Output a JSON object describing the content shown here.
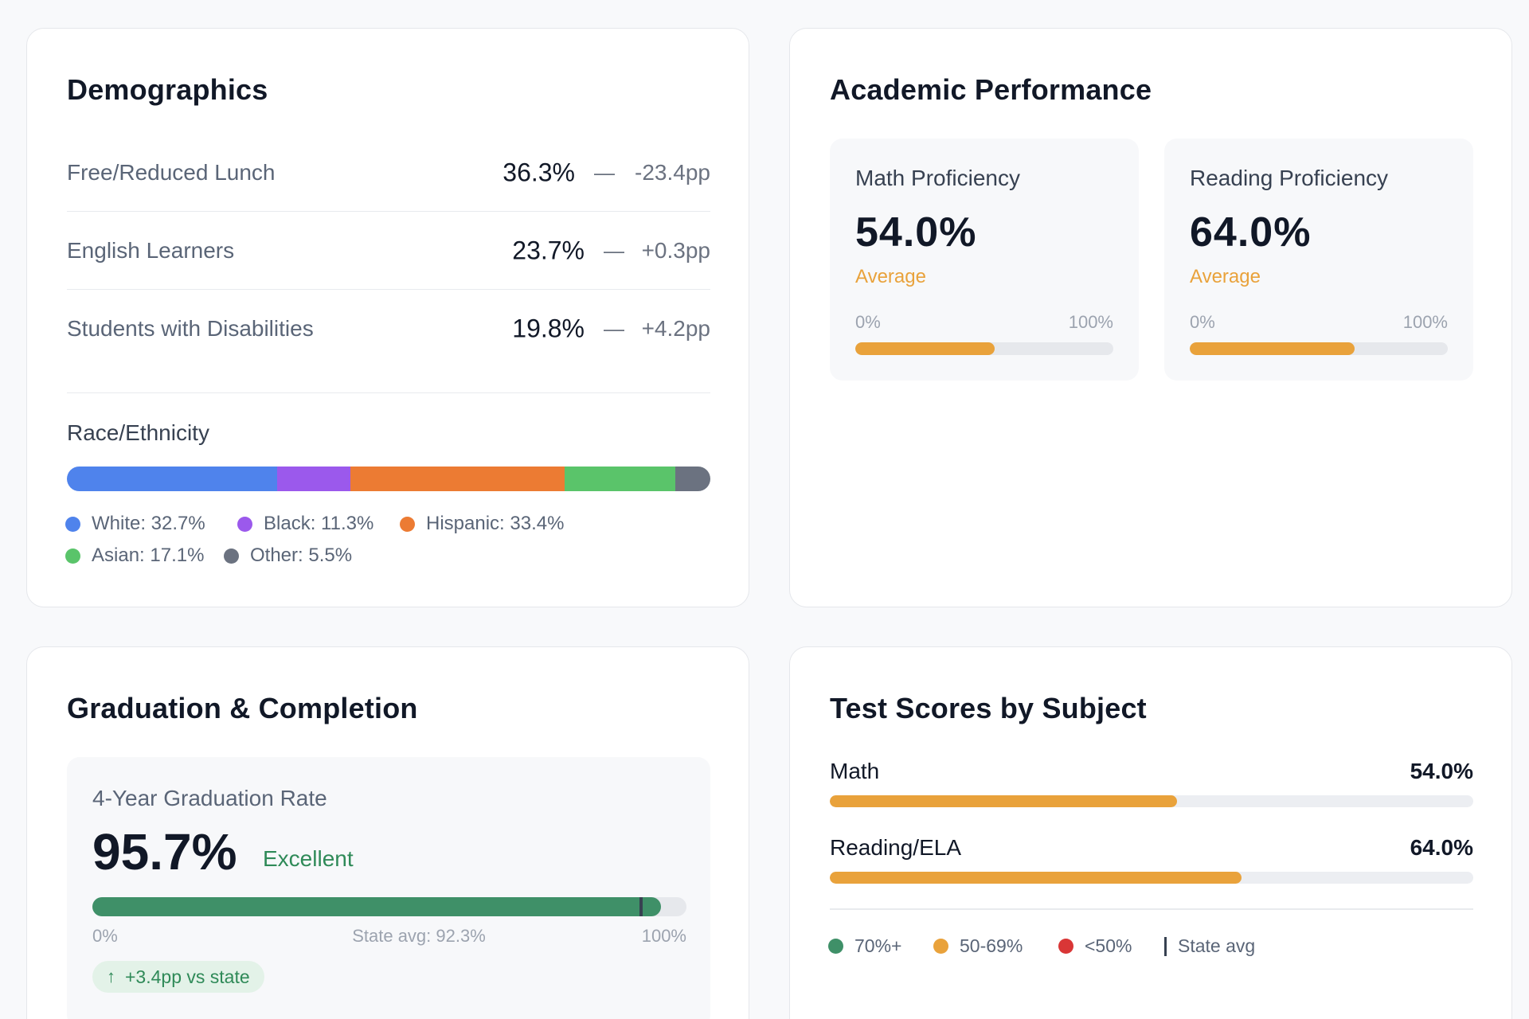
{
  "demographics": {
    "title": "Demographics",
    "rows": [
      {
        "label": "Free/Reduced Lunch",
        "value": "36.3%",
        "delta": "-23.4pp"
      },
      {
        "label": "English Learners",
        "value": "23.7%",
        "delta": "+0.3pp"
      },
      {
        "label": "Students with Disabilities",
        "value": "19.8%",
        "delta": "+4.2pp"
      }
    ],
    "dash": "—",
    "race": {
      "title": "Race/Ethnicity",
      "segments": [
        {
          "legend": "White: 32.7%",
          "percent": 32.7,
          "color": "#4f83ec"
        },
        {
          "legend": "Black: 11.3%",
          "percent": 11.3,
          "color": "#9b59ec"
        },
        {
          "legend": "Hispanic: 33.4%",
          "percent": 33.4,
          "color": "#ec7b33"
        },
        {
          "legend": "Asian: 17.1%",
          "percent": 17.1,
          "color": "#5ac46a"
        },
        {
          "legend": "Other: 5.5%",
          "percent": 5.5,
          "color": "#6b7280"
        }
      ]
    }
  },
  "academic": {
    "title": "Academic Performance",
    "cards": [
      {
        "title": "Math Proficiency",
        "value": "54.0%",
        "status": "Average",
        "min": "0%",
        "max": "100%",
        "percent": 54.0
      },
      {
        "title": "Reading Proficiency",
        "value": "64.0%",
        "status": "Average",
        "min": "0%",
        "max": "100%",
        "percent": 64.0
      }
    ]
  },
  "graduation": {
    "title": "Graduation & Completion",
    "metric_title": "4-Year Graduation Rate",
    "value": "95.7%",
    "status": "Excellent",
    "percent": 95.7,
    "state_avg_percent": 92.3,
    "min": "0%",
    "state_avg_label": "State avg: 92.3%",
    "max": "100%",
    "comparison": "+3.4pp vs state",
    "comparison_arrow": "↑"
  },
  "test_scores": {
    "title": "Test Scores by Subject",
    "subjects": [
      {
        "label": "Math",
        "value": "54.0%",
        "percent": 54.0
      },
      {
        "label": "Reading/ELA",
        "value": "64.0%",
        "percent": 64.0
      }
    ],
    "legend": {
      "high": "70%+",
      "mid": "50-69%",
      "low": "<50%",
      "state": "State avg"
    }
  },
  "colors": {
    "high": "#3f9068",
    "mid": "#e9a23b",
    "low": "#d93636"
  }
}
